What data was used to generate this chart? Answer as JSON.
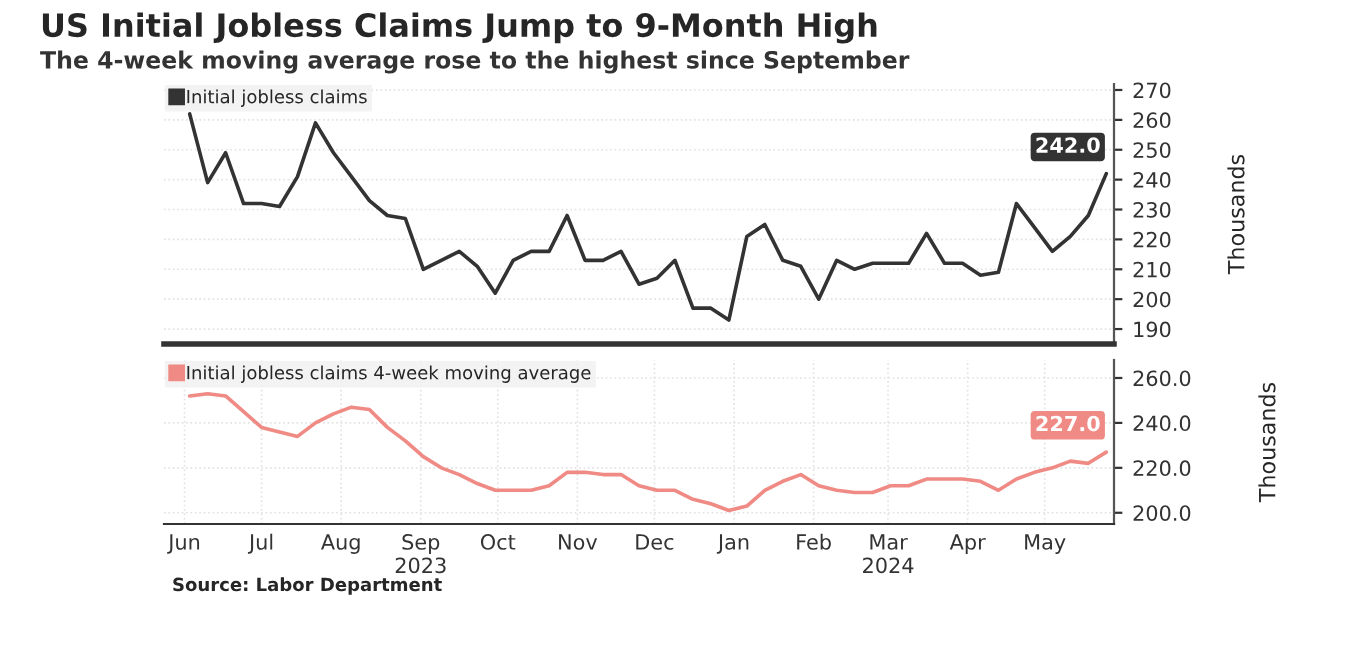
{
  "chart_data": [
    {
      "type": "line",
      "title": "US Initial Jobless Claims Jump to 9-Month High",
      "subtitle": "The 4-week moving average rose to the highest since September",
      "ylabel": "Thousands",
      "x": [
        "2023-06-17",
        "2023-06-24",
        "2023-07-01",
        "2023-07-08",
        "2023-07-15",
        "2023-07-22",
        "2023-07-29",
        "2023-08-05",
        "2023-08-12",
        "2023-08-19",
        "2023-08-26",
        "2023-09-02",
        "2023-09-09",
        "2023-09-16",
        "2023-09-23",
        "2023-09-30",
        "2023-10-07",
        "2023-10-14",
        "2023-10-21",
        "2023-10-28",
        "2023-11-04",
        "2023-11-11",
        "2023-11-18",
        "2023-11-25",
        "2023-12-02",
        "2023-12-09",
        "2023-12-16",
        "2023-12-23",
        "2023-12-30",
        "2024-01-06",
        "2024-01-13",
        "2024-01-20",
        "2024-01-27",
        "2024-02-03",
        "2024-02-10",
        "2024-02-17",
        "2024-02-24",
        "2024-03-02",
        "2024-03-09",
        "2024-03-16",
        "2024-03-23",
        "2024-03-30",
        "2024-04-06",
        "2024-04-13",
        "2024-04-20",
        "2024-04-27",
        "2024-05-04",
        "2024-05-11",
        "2024-05-18",
        "2024-05-25",
        "2024-06-01",
        "2024-06-08"
      ],
      "series": [
        {
          "name": "Initial jobless claims",
          "color": "#333333",
          "values": [
            262,
            239,
            249,
            232,
            232,
            231,
            241,
            259,
            249,
            241,
            233,
            228,
            227,
            210,
            213,
            216,
            211,
            202,
            213,
            216,
            216,
            228,
            213,
            213,
            216,
            205,
            207,
            213,
            197,
            197,
            193,
            221,
            225,
            213,
            211,
            200,
            213,
            210,
            212,
            212,
            212,
            222,
            212,
            212,
            208,
            209,
            232,
            224,
            216,
            221,
            228,
            242
          ],
          "value_labels": [
            null,
            null,
            null,
            null,
            null,
            null,
            null,
            null,
            null,
            null,
            null,
            null,
            null,
            null,
            null,
            null,
            null,
            null,
            null,
            null,
            null,
            null,
            null,
            null,
            null,
            null,
            null,
            null,
            null,
            null,
            null,
            null,
            null,
            null,
            null,
            null,
            null,
            null,
            null,
            null,
            null,
            null,
            null,
            null,
            null,
            null,
            null,
            null,
            null,
            null,
            null,
            "242.0"
          ]
        }
      ],
      "xlim": [
        "2023-06-07",
        "2024-06-11"
      ],
      "ylim": [
        185,
        272
      ],
      "yticks": [
        190,
        200,
        210,
        220,
        230,
        240,
        250,
        260,
        270
      ],
      "tick_labels": "y",
      "grid": true,
      "legend": "top left"
    },
    {
      "type": "line",
      "ylabel": "Thousands",
      "annotations": [
        "Source: Labor Department"
      ],
      "x": [
        "2023-06-17",
        "2023-06-24",
        "2023-07-01",
        "2023-07-08",
        "2023-07-15",
        "2023-07-22",
        "2023-07-29",
        "2023-08-05",
        "2023-08-12",
        "2023-08-19",
        "2023-08-26",
        "2023-09-02",
        "2023-09-09",
        "2023-09-16",
        "2023-09-23",
        "2023-09-30",
        "2023-10-07",
        "2023-10-14",
        "2023-10-21",
        "2023-10-28",
        "2023-11-04",
        "2023-11-11",
        "2023-11-18",
        "2023-11-25",
        "2023-12-02",
        "2023-12-09",
        "2023-12-16",
        "2023-12-23",
        "2023-12-30",
        "2024-01-06",
        "2024-01-13",
        "2024-01-20",
        "2024-01-27",
        "2024-02-03",
        "2024-02-10",
        "2024-02-17",
        "2024-02-24",
        "2024-03-02",
        "2024-03-09",
        "2024-03-16",
        "2024-03-23",
        "2024-03-30",
        "2024-04-06",
        "2024-04-13",
        "2024-04-20",
        "2024-04-27",
        "2024-05-04",
        "2024-05-11",
        "2024-05-18",
        "2024-05-25",
        "2024-06-01",
        "2024-06-08"
      ],
      "series": [
        {
          "name": "Initial jobless claims 4-week moving average",
          "color": "#f08a84",
          "values": [
            252,
            253,
            252,
            245,
            238,
            236,
            234,
            240,
            244,
            247,
            246,
            238,
            232,
            225,
            220,
            217,
            213,
            210,
            210,
            210,
            212,
            218,
            218,
            217,
            217,
            212,
            210,
            210,
            206,
            204,
            201,
            203,
            210,
            214,
            217,
            212,
            210,
            209,
            209,
            212,
            212,
            215,
            215,
            215,
            214,
            210,
            215,
            218,
            220,
            223,
            222,
            227
          ],
          "value_labels": [
            null,
            null,
            null,
            null,
            null,
            null,
            null,
            null,
            null,
            null,
            null,
            null,
            null,
            null,
            null,
            null,
            null,
            null,
            null,
            null,
            null,
            null,
            null,
            null,
            null,
            null,
            null,
            null,
            null,
            null,
            null,
            null,
            null,
            null,
            null,
            null,
            null,
            null,
            null,
            null,
            null,
            null,
            null,
            null,
            null,
            null,
            null,
            null,
            null,
            null,
            null,
            "227.0"
          ]
        }
      ],
      "xlim": [
        "2023-06-07",
        "2024-06-11"
      ],
      "ylim": [
        195,
        268
      ],
      "yticks": [
        {
          "value": 200,
          "label": "200.0"
        },
        {
          "value": 220,
          "label": "220.0"
        },
        {
          "value": 240,
          "label": "240.0"
        },
        {
          "value": 260,
          "label": "260.0"
        }
      ],
      "xticks": [
        {
          "value": "2023-06-15",
          "label": "Jun"
        },
        {
          "value": "2023-07-15",
          "label": "Jul"
        },
        {
          "value": "2023-08-15",
          "label": "Aug"
        },
        {
          "value": "2023-09-15",
          "label": "Sep\n2023"
        },
        {
          "value": "2023-10-15",
          "label": "Oct"
        },
        {
          "value": "2023-11-15",
          "label": "Nov"
        },
        {
          "value": "2023-12-15",
          "label": "Dec"
        },
        {
          "value": "2024-01-15",
          "label": "Jan"
        },
        {
          "value": "2024-02-15",
          "label": "Feb"
        },
        {
          "value": "2024-03-15",
          "label": "Mar\n2024"
        },
        {
          "value": "2024-04-15",
          "label": "Apr"
        },
        {
          "value": "2024-05-15",
          "label": "May"
        }
      ],
      "grid": true,
      "legend": "top left"
    }
  ]
}
